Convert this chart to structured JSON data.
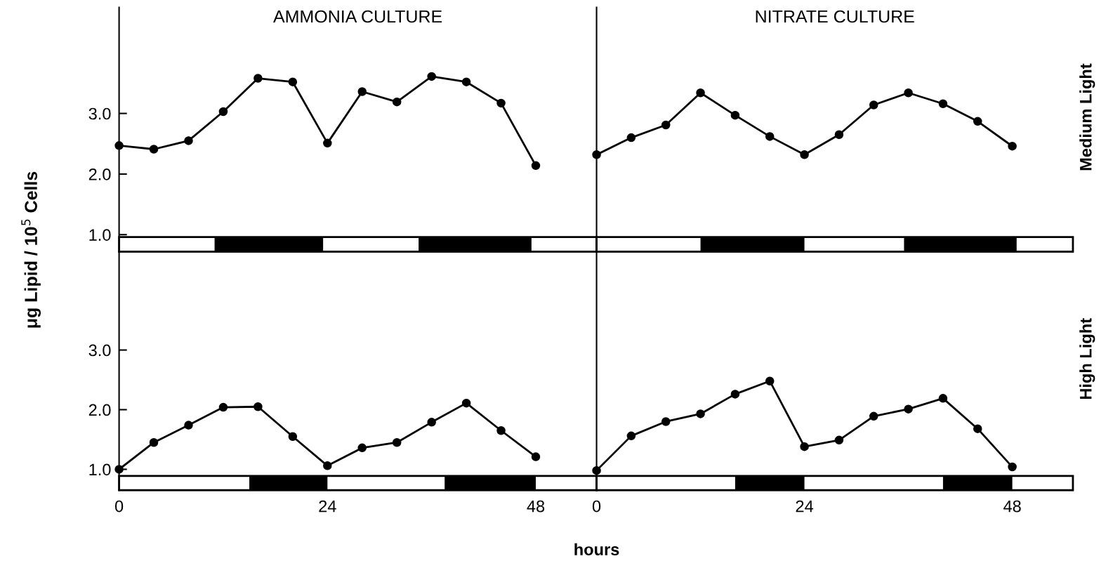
{
  "chart_data": [
    {
      "type": "line",
      "title": "AMMONIA CULTURE",
      "ylabel": "μg Lipid / 10$^{5}$ Cells",
      "x": [
        0,
        4,
        8,
        12,
        16,
        20,
        24,
        28,
        32,
        36,
        40,
        44,
        48
      ],
      "series": [
        {
          "color": "#000000",
          "values": [
            2.47,
            2.41,
            2.55,
            3.03,
            3.58,
            3.52,
            2.51,
            3.36,
            3.19,
            3.61,
            3.52,
            3.17,
            2.14
          ]
        }
      ],
      "xlim": [
        0,
        55
      ],
      "xticks": [
        0,
        24,
        48
      ],
      "ylim": [
        0.72,
        4.75
      ],
      "yticks": [
        {
          "value": 1,
          "label": "1.0"
        },
        {
          "value": 2,
          "label": "2.0"
        },
        {
          "value": 3,
          "label": "3.0"
        }
      ],
      "bands": [
        {
          "axis": "x",
          "from": 11,
          "to": 23.5,
          "color": "#000000"
        },
        {
          "axis": "x",
          "from": 34.5,
          "to": 47.5,
          "color": "#000000"
        }
      ],
      "tick_labels": "y",
      "marker": "circle",
      "line_style": "solid"
    },
    {
      "type": "line",
      "title": "NITRATE CULTURE",
      "y2label": "Medium Light",
      "x": [
        0,
        4,
        8,
        12,
        16,
        20,
        24,
        28,
        32,
        36,
        40,
        44,
        48
      ],
      "series": [
        {
          "color": "#000000",
          "values": [
            2.32,
            2.6,
            2.81,
            3.34,
            2.97,
            2.62,
            2.32,
            2.65,
            3.14,
            3.34,
            3.16,
            2.87,
            2.46
          ]
        }
      ],
      "xlim": [
        0,
        55
      ],
      "xticks": [
        0,
        24,
        48
      ],
      "ylim": [
        0.72,
        4.75
      ],
      "bands": [
        {
          "axis": "x",
          "from": 12,
          "to": 24,
          "color": "#000000"
        },
        {
          "axis": "x",
          "from": 35.5,
          "to": 48.5,
          "color": "#000000"
        }
      ],
      "tick_labels": false,
      "marker": "circle",
      "line_style": "solid"
    },
    {
      "type": "line",
      "xlabel": "hours",
      "x": [
        0,
        4,
        8,
        12,
        16,
        20,
        24,
        28,
        32,
        36,
        40,
        44,
        48
      ],
      "series": [
        {
          "color": "#000000",
          "values": [
            1.0,
            1.45,
            1.74,
            2.04,
            2.05,
            1.55,
            1.06,
            1.36,
            1.45,
            1.79,
            2.11,
            1.65,
            1.21
          ]
        }
      ],
      "xlim": [
        0,
        55
      ],
      "xticks": [
        0,
        24,
        48
      ],
      "ylim": [
        0.65,
        4.65
      ],
      "yticks": [
        {
          "value": 1,
          "label": "1.0"
        },
        {
          "value": 2,
          "label": "2.0"
        },
        {
          "value": 3,
          "label": "3.0"
        }
      ],
      "bands": [
        {
          "axis": "x",
          "from": 15,
          "to": 24,
          "color": "#000000"
        },
        {
          "axis": "x",
          "from": 37.5,
          "to": 48,
          "color": "#000000"
        }
      ],
      "marker": "circle",
      "line_style": "solid"
    },
    {
      "type": "line",
      "y2label": "High Light",
      "x": [
        0,
        4,
        8,
        12,
        16,
        20,
        24,
        28,
        32,
        36,
        40,
        44,
        48
      ],
      "series": [
        {
          "color": "#000000",
          "values": [
            0.98,
            1.56,
            1.8,
            1.93,
            2.26,
            2.48,
            1.38,
            1.49,
            1.89,
            2.01,
            2.19,
            1.68,
            1.04
          ]
        }
      ],
      "xlim": [
        0,
        55
      ],
      "xticks": [
        0,
        24,
        48
      ],
      "ylim": [
        0.65,
        4.65
      ],
      "bands": [
        {
          "axis": "x",
          "from": 16,
          "to": 24,
          "color": "#000000"
        },
        {
          "axis": "x",
          "from": 40,
          "to": 48,
          "color": "#000000"
        }
      ],
      "tick_labels": "x",
      "marker": "circle",
      "line_style": "solid"
    }
  ]
}
